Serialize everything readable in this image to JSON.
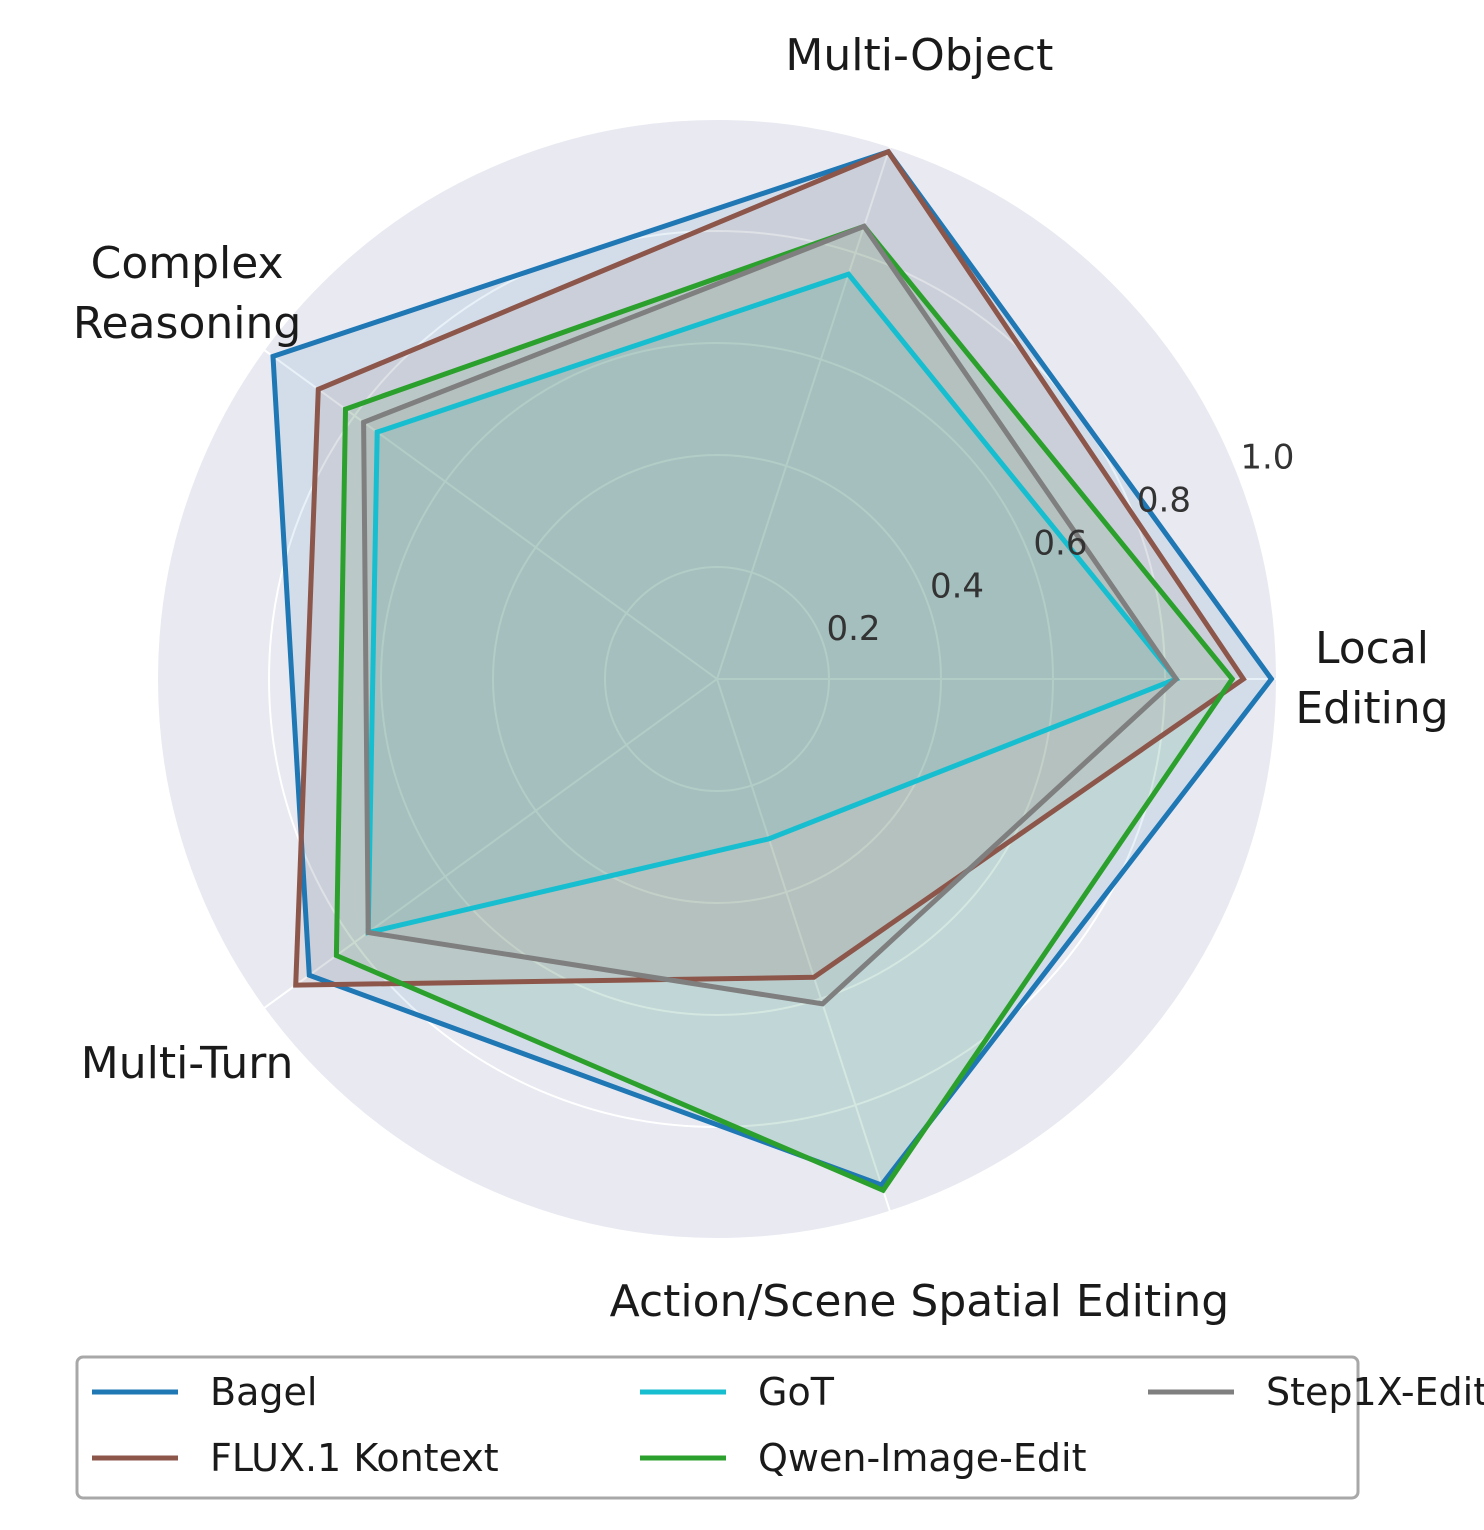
{
  "chart_data": {
    "type": "radar",
    "axes": [
      "Local Editing",
      "Multi-Object",
      "Complex Reasoning",
      "Multi-Turn",
      "Action/Scene Spatial Editing"
    ],
    "axis_label_lines": [
      [
        "Local",
        "Editing"
      ],
      [
        "Multi-Object"
      ],
      [
        "Complex",
        "Reasoning"
      ],
      [
        "Multi-Turn"
      ],
      [
        "Action/Scene Spatial Editing"
      ]
    ],
    "r_ticks": [
      0.2,
      0.4,
      0.6,
      0.8,
      1.0
    ],
    "r_tick_labels": [
      "0.2",
      "0.4",
      "0.6",
      "0.8",
      "1.0"
    ],
    "rlim": [
      0,
      1.0
    ],
    "grid": true,
    "legend_position": "bottom",
    "series": [
      {
        "name": "Bagel",
        "color": "#1f77b4",
        "values": [
          0.99,
          0.99,
          0.98,
          0.9,
          0.95
        ]
      },
      {
        "name": "FLUX.1 Kontext",
        "color": "#8c564b",
        "values": [
          0.94,
          0.99,
          0.88,
          0.93,
          0.56
        ]
      },
      {
        "name": "GoT",
        "color": "#17becf",
        "values": [
          0.82,
          0.76,
          0.75,
          0.77,
          0.3
        ]
      },
      {
        "name": "Qwen-Image-Edit",
        "color": "#2ca02c",
        "values": [
          0.92,
          0.85,
          0.82,
          0.84,
          0.96
        ]
      },
      {
        "name": "Step1X-Edit",
        "color": "#7f7f7f",
        "values": [
          0.82,
          0.85,
          0.78,
          0.77,
          0.61
        ]
      }
    ]
  }
}
